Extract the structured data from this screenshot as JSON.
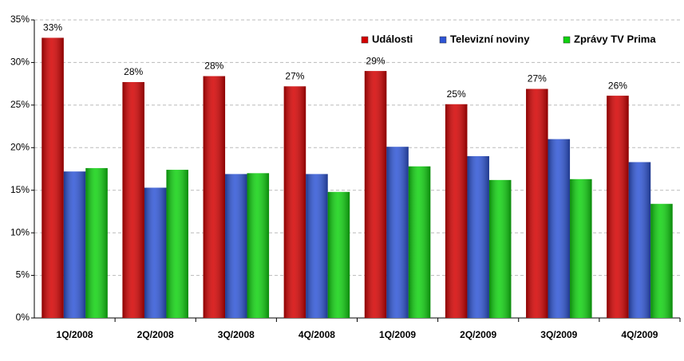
{
  "chart_data": {
    "type": "bar",
    "categories": [
      "1Q/2008",
      "2Q/2008",
      "3Q/2008",
      "4Q/2008",
      "1Q/2009",
      "2Q/2009",
      "3Q/2009",
      "4Q/2009"
    ],
    "series": [
      {
        "name": "Události",
        "color": "#d40000",
        "values": [
          32.9,
          27.7,
          28.4,
          27.2,
          29.0,
          25.1,
          26.9,
          26.1
        ],
        "value_labels": [
          "33%",
          "28%",
          "28%",
          "27%",
          "29%",
          "25%",
          "27%",
          "26%"
        ]
      },
      {
        "name": "Televizní noviny",
        "color": "#2e55d6",
        "values": [
          17.2,
          15.3,
          16.9,
          16.9,
          20.1,
          19.0,
          21.0,
          18.3
        ]
      },
      {
        "name": "Zprávy TV Prima",
        "color": "#0fd20f",
        "values": [
          17.6,
          17.4,
          17.0,
          14.8,
          17.8,
          16.2,
          16.3,
          13.4
        ]
      }
    ],
    "ylim": [
      0,
      35
    ],
    "yticks": [
      {
        "value": 0,
        "label": "0%"
      },
      {
        "value": 5,
        "label": "5%"
      },
      {
        "value": 10,
        "label": "10%"
      },
      {
        "value": 15,
        "label": "15%"
      },
      {
        "value": 20,
        "label": "20%"
      },
      {
        "value": 25,
        "label": "25%"
      },
      {
        "value": 30,
        "label": "30%"
      },
      {
        "value": 35,
        "label": "35%"
      }
    ],
    "grid": true,
    "legend": "top-right"
  }
}
